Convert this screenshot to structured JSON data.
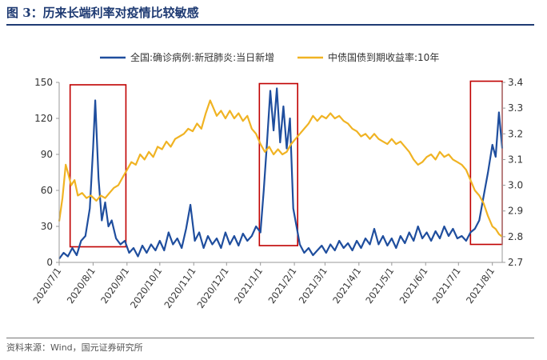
{
  "figure": {
    "title": "图 3：历来长端利率对疫情比较敏感",
    "source": "资料来源：Wind，国元证券研究所"
  },
  "colors": {
    "cases": "#1f4e9e",
    "yield": "#f0b323",
    "highlight_box": "#c00000",
    "title": "#1f3b73"
  },
  "chart_data": {
    "type": "line",
    "title": "",
    "x_tick_labels": [
      "2020/7/1",
      "2020/8/1",
      "2020/9/1",
      "2020/10/1",
      "2020/11/1",
      "2020/12/1",
      "2021/1/1",
      "2021/2/1",
      "2021/3/1",
      "2021/4/1",
      "2021/5/1",
      "2021/6/1",
      "2021/7/1",
      "2021/8/1"
    ],
    "xlim": [
      "2020-07-01",
      "2021-08-10"
    ],
    "y_left": {
      "lim": [
        0,
        150
      ],
      "ticks": [
        0,
        30,
        60,
        90,
        120,
        150
      ]
    },
    "y_right": {
      "lim": [
        2.7,
        3.4
      ],
      "ticks": [
        "2.7",
        "2.8",
        "2.9",
        "3.0",
        "3.1",
        "3.2",
        "3.3",
        "3.4"
      ]
    },
    "legend": {
      "position": "top"
    },
    "highlight_periods": [
      {
        "from": "2020-07-11",
        "to": "2020-08-31",
        "y_range": [
          13,
          148
        ]
      },
      {
        "from": "2020-12-31",
        "to": "2021-02-04",
        "y_range": [
          14,
          149
        ]
      },
      {
        "from": "2021-07-12",
        "to": "2021-08-10",
        "y_range": [
          15,
          151
        ]
      }
    ],
    "series": [
      {
        "name": "全国:确诊病例:新冠肺炎:当日新增",
        "axis": "left",
        "points": [
          [
            "2020-07-01",
            3
          ],
          [
            "2020-07-05",
            8
          ],
          [
            "2020-07-09",
            5
          ],
          [
            "2020-07-13",
            12
          ],
          [
            "2020-07-17",
            6
          ],
          [
            "2020-07-21",
            18
          ],
          [
            "2020-07-25",
            22
          ],
          [
            "2020-07-29",
            45
          ],
          [
            "2020-08-01",
            95
          ],
          [
            "2020-08-03",
            135
          ],
          [
            "2020-08-06",
            70
          ],
          [
            "2020-08-09",
            35
          ],
          [
            "2020-08-12",
            50
          ],
          [
            "2020-08-15",
            30
          ],
          [
            "2020-08-18",
            35
          ],
          [
            "2020-08-22",
            20
          ],
          [
            "2020-08-26",
            15
          ],
          [
            "2020-08-30",
            18
          ],
          [
            "2020-09-03",
            8
          ],
          [
            "2020-09-07",
            12
          ],
          [
            "2020-09-11",
            5
          ],
          [
            "2020-09-15",
            14
          ],
          [
            "2020-09-19",
            8
          ],
          [
            "2020-09-23",
            15
          ],
          [
            "2020-09-27",
            10
          ],
          [
            "2020-10-01",
            18
          ],
          [
            "2020-10-05",
            10
          ],
          [
            "2020-10-09",
            25
          ],
          [
            "2020-10-13",
            15
          ],
          [
            "2020-10-17",
            20
          ],
          [
            "2020-10-21",
            12
          ],
          [
            "2020-10-25",
            28
          ],
          [
            "2020-10-29",
            48
          ],
          [
            "2020-11-02",
            18
          ],
          [
            "2020-11-06",
            25
          ],
          [
            "2020-11-10",
            12
          ],
          [
            "2020-11-14",
            22
          ],
          [
            "2020-11-18",
            15
          ],
          [
            "2020-11-22",
            20
          ],
          [
            "2020-11-26",
            12
          ],
          [
            "2020-11-30",
            25
          ],
          [
            "2020-12-04",
            15
          ],
          [
            "2020-12-08",
            22
          ],
          [
            "2020-12-12",
            14
          ],
          [
            "2020-12-16",
            24
          ],
          [
            "2020-12-20",
            18
          ],
          [
            "2020-12-24",
            22
          ],
          [
            "2020-12-28",
            30
          ],
          [
            "2021-01-01",
            25
          ],
          [
            "2021-01-04",
            60
          ],
          [
            "2021-01-07",
            100
          ],
          [
            "2021-01-10",
            143
          ],
          [
            "2021-01-13",
            110
          ],
          [
            "2021-01-16",
            145
          ],
          [
            "2021-01-19",
            100
          ],
          [
            "2021-01-22",
            130
          ],
          [
            "2021-01-25",
            95
          ],
          [
            "2021-01-28",
            120
          ],
          [
            "2021-01-31",
            45
          ],
          [
            "2021-02-03",
            30
          ],
          [
            "2021-02-06",
            15
          ],
          [
            "2021-02-10",
            8
          ],
          [
            "2021-02-14",
            12
          ],
          [
            "2021-02-18",
            6
          ],
          [
            "2021-02-22",
            10
          ],
          [
            "2021-02-26",
            14
          ],
          [
            "2021-03-02",
            8
          ],
          [
            "2021-03-06",
            15
          ],
          [
            "2021-03-10",
            10
          ],
          [
            "2021-03-14",
            18
          ],
          [
            "2021-03-18",
            12
          ],
          [
            "2021-03-22",
            16
          ],
          [
            "2021-03-26",
            10
          ],
          [
            "2021-03-30",
            18
          ],
          [
            "2021-04-03",
            12
          ],
          [
            "2021-04-07",
            20
          ],
          [
            "2021-04-11",
            15
          ],
          [
            "2021-04-15",
            28
          ],
          [
            "2021-04-19",
            15
          ],
          [
            "2021-04-23",
            22
          ],
          [
            "2021-04-27",
            14
          ],
          [
            "2021-05-01",
            20
          ],
          [
            "2021-05-05",
            12
          ],
          [
            "2021-05-09",
            22
          ],
          [
            "2021-05-13",
            16
          ],
          [
            "2021-05-17",
            25
          ],
          [
            "2021-05-21",
            18
          ],
          [
            "2021-05-25",
            30
          ],
          [
            "2021-05-29",
            20
          ],
          [
            "2021-06-02",
            25
          ],
          [
            "2021-06-06",
            18
          ],
          [
            "2021-06-10",
            26
          ],
          [
            "2021-06-14",
            20
          ],
          [
            "2021-06-18",
            30
          ],
          [
            "2021-06-22",
            22
          ],
          [
            "2021-06-26",
            28
          ],
          [
            "2021-06-30",
            20
          ],
          [
            "2021-07-04",
            22
          ],
          [
            "2021-07-08",
            18
          ],
          [
            "2021-07-12",
            25
          ],
          [
            "2021-07-16",
            28
          ],
          [
            "2021-07-20",
            35
          ],
          [
            "2021-07-24",
            55
          ],
          [
            "2021-07-28",
            75
          ],
          [
            "2021-08-01",
            98
          ],
          [
            "2021-08-04",
            88
          ],
          [
            "2021-08-07",
            125
          ],
          [
            "2021-08-10",
            95
          ]
        ]
      },
      {
        "name": "中债国债到期收益率:10年",
        "axis": "right",
        "points": [
          [
            "2020-07-01",
            2.86
          ],
          [
            "2020-07-04",
            2.95
          ],
          [
            "2020-07-07",
            3.08
          ],
          [
            "2020-07-09",
            3.05
          ],
          [
            "2020-07-12",
            3.0
          ],
          [
            "2020-07-15",
            3.02
          ],
          [
            "2020-07-18",
            2.96
          ],
          [
            "2020-07-22",
            2.97
          ],
          [
            "2020-07-26",
            2.95
          ],
          [
            "2020-07-30",
            2.96
          ],
          [
            "2020-08-04",
            2.94
          ],
          [
            "2020-08-08",
            2.96
          ],
          [
            "2020-08-12",
            2.95
          ],
          [
            "2020-08-16",
            2.97
          ],
          [
            "2020-08-20",
            2.99
          ],
          [
            "2020-08-24",
            3.0
          ],
          [
            "2020-08-28",
            3.03
          ],
          [
            "2020-09-01",
            3.06
          ],
          [
            "2020-09-05",
            3.09
          ],
          [
            "2020-09-09",
            3.08
          ],
          [
            "2020-09-13",
            3.12
          ],
          [
            "2020-09-17",
            3.1
          ],
          [
            "2020-09-21",
            3.13
          ],
          [
            "2020-09-25",
            3.11
          ],
          [
            "2020-09-29",
            3.15
          ],
          [
            "2020-10-03",
            3.14
          ],
          [
            "2020-10-07",
            3.17
          ],
          [
            "2020-10-11",
            3.15
          ],
          [
            "2020-10-15",
            3.18
          ],
          [
            "2020-10-19",
            3.19
          ],
          [
            "2020-10-23",
            3.2
          ],
          [
            "2020-10-27",
            3.22
          ],
          [
            "2020-10-31",
            3.21
          ],
          [
            "2020-11-04",
            3.24
          ],
          [
            "2020-11-08",
            3.22
          ],
          [
            "2020-11-12",
            3.28
          ],
          [
            "2020-11-16",
            3.33
          ],
          [
            "2020-11-19",
            3.3
          ],
          [
            "2020-11-22",
            3.27
          ],
          [
            "2020-11-26",
            3.29
          ],
          [
            "2020-11-30",
            3.26
          ],
          [
            "2020-12-04",
            3.29
          ],
          [
            "2020-12-08",
            3.26
          ],
          [
            "2020-12-12",
            3.28
          ],
          [
            "2020-12-16",
            3.25
          ],
          [
            "2020-12-20",
            3.27
          ],
          [
            "2020-12-24",
            3.22
          ],
          [
            "2020-12-28",
            3.2
          ],
          [
            "2021-01-01",
            3.16
          ],
          [
            "2021-01-05",
            3.13
          ],
          [
            "2021-01-09",
            3.15
          ],
          [
            "2021-01-13",
            3.12
          ],
          [
            "2021-01-17",
            3.14
          ],
          [
            "2021-01-21",
            3.12
          ],
          [
            "2021-01-25",
            3.13
          ],
          [
            "2021-01-29",
            3.16
          ],
          [
            "2021-02-02",
            3.18
          ],
          [
            "2021-02-06",
            3.2
          ],
          [
            "2021-02-10",
            3.22
          ],
          [
            "2021-02-14",
            3.24
          ],
          [
            "2021-02-18",
            3.27
          ],
          [
            "2021-02-22",
            3.25
          ],
          [
            "2021-02-26",
            3.27
          ],
          [
            "2021-03-02",
            3.26
          ],
          [
            "2021-03-06",
            3.28
          ],
          [
            "2021-03-10",
            3.26
          ],
          [
            "2021-03-14",
            3.27
          ],
          [
            "2021-03-18",
            3.25
          ],
          [
            "2021-03-22",
            3.24
          ],
          [
            "2021-03-26",
            3.22
          ],
          [
            "2021-03-30",
            3.21
          ],
          [
            "2021-04-03",
            3.19
          ],
          [
            "2021-04-07",
            3.2
          ],
          [
            "2021-04-11",
            3.18
          ],
          [
            "2021-04-15",
            3.2
          ],
          [
            "2021-04-19",
            3.18
          ],
          [
            "2021-04-23",
            3.17
          ],
          [
            "2021-04-27",
            3.16
          ],
          [
            "2021-05-01",
            3.18
          ],
          [
            "2021-05-05",
            3.16
          ],
          [
            "2021-05-09",
            3.17
          ],
          [
            "2021-05-13",
            3.15
          ],
          [
            "2021-05-17",
            3.13
          ],
          [
            "2021-05-21",
            3.1
          ],
          [
            "2021-05-25",
            3.08
          ],
          [
            "2021-05-29",
            3.09
          ],
          [
            "2021-06-02",
            3.11
          ],
          [
            "2021-06-06",
            3.12
          ],
          [
            "2021-06-10",
            3.1
          ],
          [
            "2021-06-14",
            3.13
          ],
          [
            "2021-06-18",
            3.11
          ],
          [
            "2021-06-22",
            3.12
          ],
          [
            "2021-06-26",
            3.1
          ],
          [
            "2021-06-30",
            3.09
          ],
          [
            "2021-07-04",
            3.08
          ],
          [
            "2021-07-08",
            3.06
          ],
          [
            "2021-07-12",
            3.02
          ],
          [
            "2021-07-16",
            2.98
          ],
          [
            "2021-07-20",
            2.96
          ],
          [
            "2021-07-24",
            2.93
          ],
          [
            "2021-07-28",
            2.88
          ],
          [
            "2021-08-01",
            2.84
          ],
          [
            "2021-08-04",
            2.83
          ],
          [
            "2021-08-07",
            2.81
          ],
          [
            "2021-08-10",
            2.8
          ]
        ]
      }
    ]
  }
}
